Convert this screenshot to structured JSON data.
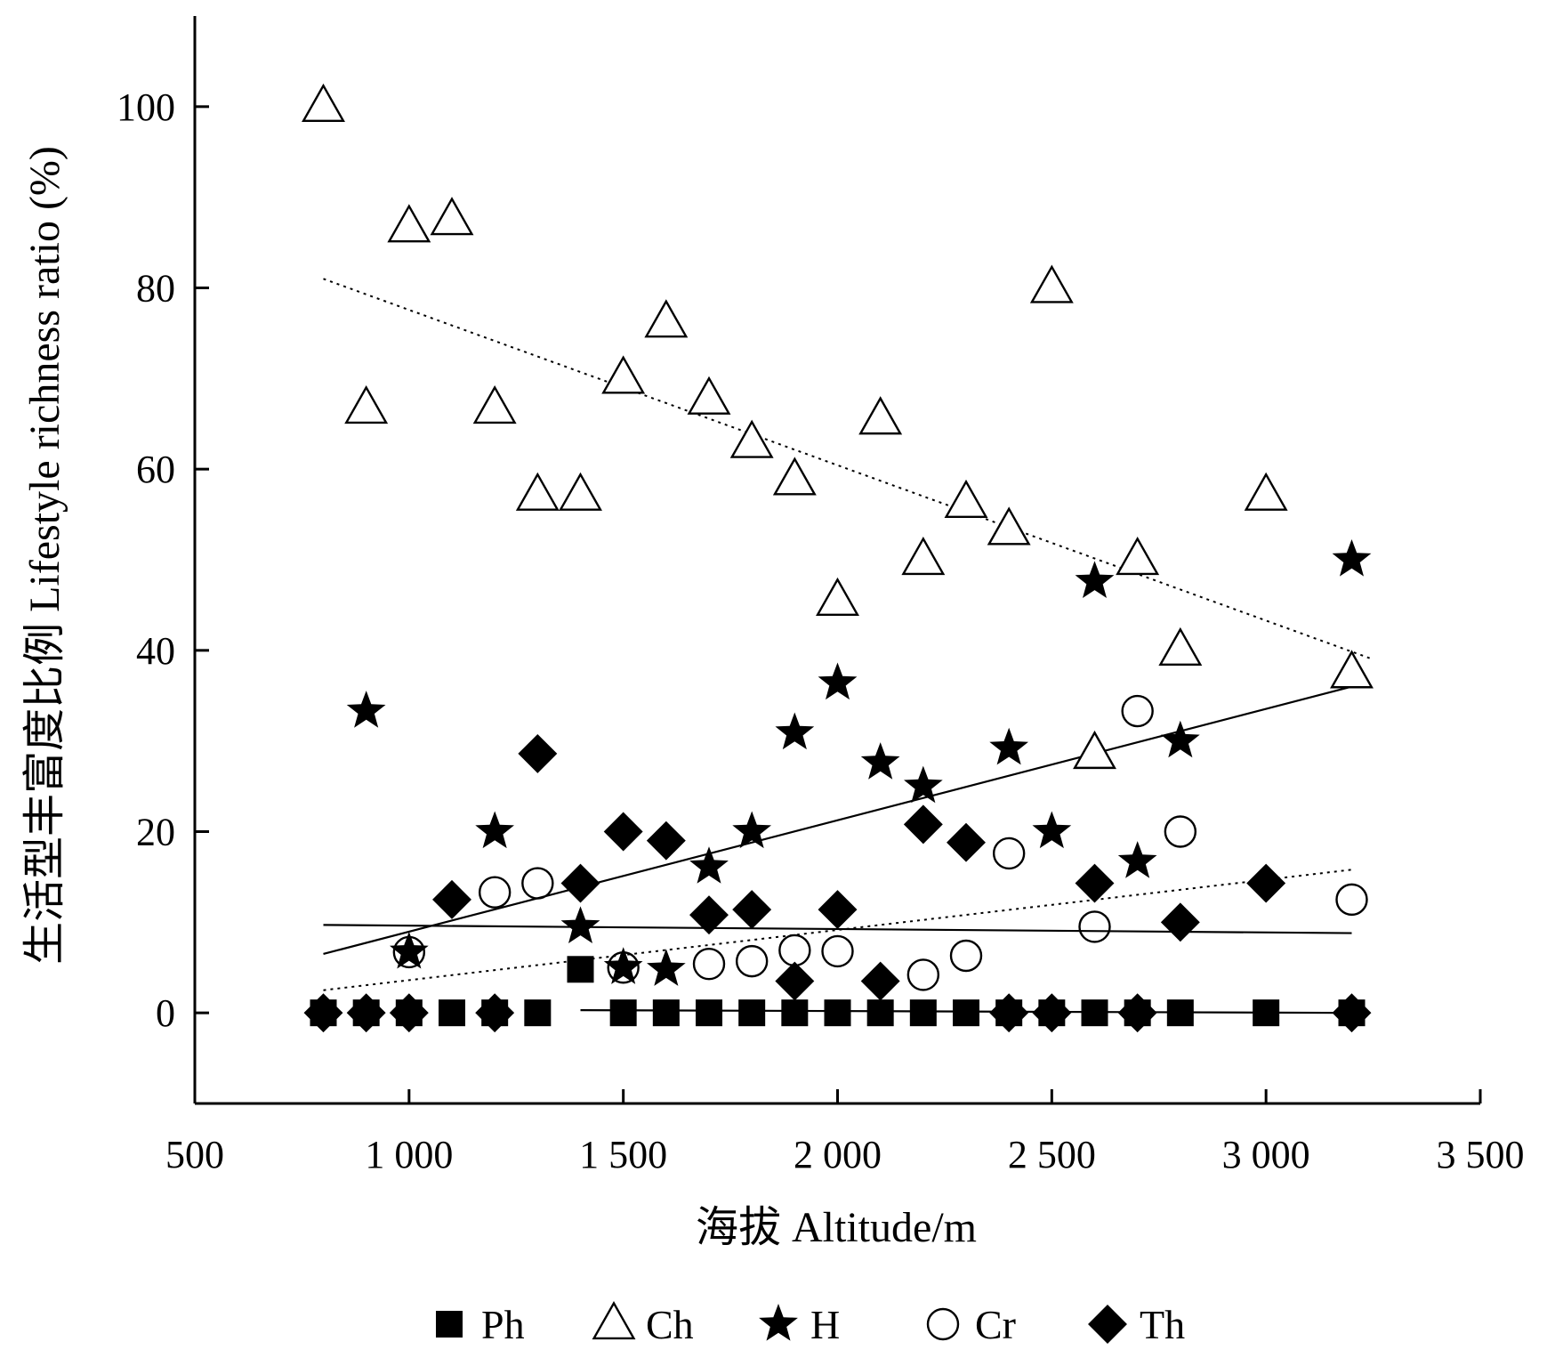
{
  "chart_data": {
    "type": "scatter",
    "xlabel": "海拔  Altitude/m",
    "ylabel": "生活型丰富度比例  Lifestyle richness ratio (%)",
    "xlim": [
      500,
      3500
    ],
    "ylim": [
      -10,
      110
    ],
    "xticks": [
      500,
      1000,
      1500,
      2000,
      2500,
      3000,
      3500
    ],
    "xtick_labels": [
      "500",
      "1 000",
      "1 500",
      "2 000",
      "2 500",
      "3 000",
      "3 500"
    ],
    "yticks": [
      0,
      20,
      40,
      60,
      80,
      100
    ],
    "ytick_labels": [
      "0",
      "20",
      "40",
      "60",
      "80",
      "100"
    ],
    "legend_position": "bottom",
    "series": [
      {
        "name": "Ph",
        "marker": "filled-square",
        "color": "#000000",
        "points": [
          [
            800,
            0
          ],
          [
            900,
            0
          ],
          [
            1000,
            0
          ],
          [
            1100,
            0
          ],
          [
            1200,
            0
          ],
          [
            1300,
            0
          ],
          [
            1400,
            4.8
          ],
          [
            1500,
            0
          ],
          [
            1600,
            0
          ],
          [
            1700,
            0
          ],
          [
            1800,
            0
          ],
          [
            1900,
            0
          ],
          [
            2000,
            0
          ],
          [
            2100,
            0
          ],
          [
            2200,
            0
          ],
          [
            2300,
            0
          ],
          [
            2400,
            0
          ],
          [
            2500,
            0
          ],
          [
            2600,
            0
          ],
          [
            2700,
            0
          ],
          [
            2800,
            0
          ],
          [
            3000,
            0
          ],
          [
            3200,
            0
          ]
        ],
        "trend": {
          "style": "solid",
          "x": [
            1400,
            3200
          ],
          "y": [
            0.3,
            0
          ]
        }
      },
      {
        "name": "Ch",
        "marker": "open-triangle",
        "color": "#000000",
        "points": [
          [
            800,
            100
          ],
          [
            900,
            66.7
          ],
          [
            1000,
            86.7
          ],
          [
            1100,
            87.5
          ],
          [
            1200,
            66.7
          ],
          [
            1300,
            57.1
          ],
          [
            1400,
            57.1
          ],
          [
            1500,
            70
          ],
          [
            1600,
            76.2
          ],
          [
            1700,
            67.7
          ],
          [
            1800,
            62.9
          ],
          [
            1900,
            58.8
          ],
          [
            2000,
            45.5
          ],
          [
            2100,
            65.5
          ],
          [
            2200,
            50
          ],
          [
            2300,
            56.3
          ],
          [
            2400,
            53.3
          ],
          [
            2500,
            80
          ],
          [
            2600,
            28.6
          ],
          [
            2700,
            50
          ],
          [
            2800,
            40
          ],
          [
            3000,
            57.1
          ],
          [
            3200,
            37.5
          ]
        ],
        "trend": {
          "style": "dotted",
          "x": [
            800,
            3250
          ],
          "y": [
            81,
            39
          ]
        }
      },
      {
        "name": "H",
        "marker": "filled-star",
        "color": "#000000",
        "points": [
          [
            900,
            33.3
          ],
          [
            1000,
            6.7
          ],
          [
            1200,
            20
          ],
          [
            1400,
            9.5
          ],
          [
            1500,
            5
          ],
          [
            1600,
            4.8
          ],
          [
            1700,
            16.1
          ],
          [
            1800,
            20
          ],
          [
            1900,
            30.9
          ],
          [
            2000,
            36.4
          ],
          [
            2100,
            27.6
          ],
          [
            2200,
            25
          ],
          [
            2400,
            29.2
          ],
          [
            2500,
            20
          ],
          [
            2600,
            47.6
          ],
          [
            2700,
            16.7
          ],
          [
            2800,
            30
          ],
          [
            3200,
            50
          ]
        ],
        "trend": {
          "style": "solid",
          "x": [
            800,
            3200
          ],
          "y": [
            6.5,
            36
          ]
        }
      },
      {
        "name": "Cr",
        "marker": "open-circle",
        "color": "#000000",
        "points": [
          [
            1000,
            6.7
          ],
          [
            1200,
            13.3
          ],
          [
            1300,
            14.3
          ],
          [
            1500,
            5
          ],
          [
            1700,
            5.4
          ],
          [
            1800,
            5.7
          ],
          [
            1900,
            6.9
          ],
          [
            2000,
            6.8
          ],
          [
            2200,
            4.2
          ],
          [
            2300,
            6.3
          ],
          [
            2400,
            17.6
          ],
          [
            2600,
            9.5
          ],
          [
            2700,
            33.3
          ],
          [
            2800,
            20
          ],
          [
            3200,
            12.5
          ]
        ],
        "trend": {
          "style": "dotted",
          "x": [
            800,
            3200
          ],
          "y": [
            2.5,
            15.8
          ]
        }
      },
      {
        "name": "Th",
        "marker": "filled-diamond",
        "color": "#000000",
        "points": [
          [
            800,
            0
          ],
          [
            900,
            0
          ],
          [
            1000,
            0
          ],
          [
            1100,
            12.5
          ],
          [
            1200,
            0
          ],
          [
            1300,
            28.6
          ],
          [
            1400,
            14.3
          ],
          [
            1500,
            20
          ],
          [
            1600,
            19
          ],
          [
            1700,
            10.8
          ],
          [
            1800,
            11.4
          ],
          [
            1900,
            3.5
          ],
          [
            2000,
            11.4
          ],
          [
            2100,
            3.5
          ],
          [
            2200,
            20.8
          ],
          [
            2300,
            18.8
          ],
          [
            2400,
            0
          ],
          [
            2500,
            0
          ],
          [
            2600,
            14.3
          ],
          [
            2700,
            0
          ],
          [
            2800,
            10
          ],
          [
            3000,
            14.3
          ],
          [
            3200,
            0
          ]
        ],
        "trend": {
          "style": "solid",
          "x": [
            800,
            3200
          ],
          "y": [
            9.7,
            8.8
          ]
        }
      }
    ]
  }
}
